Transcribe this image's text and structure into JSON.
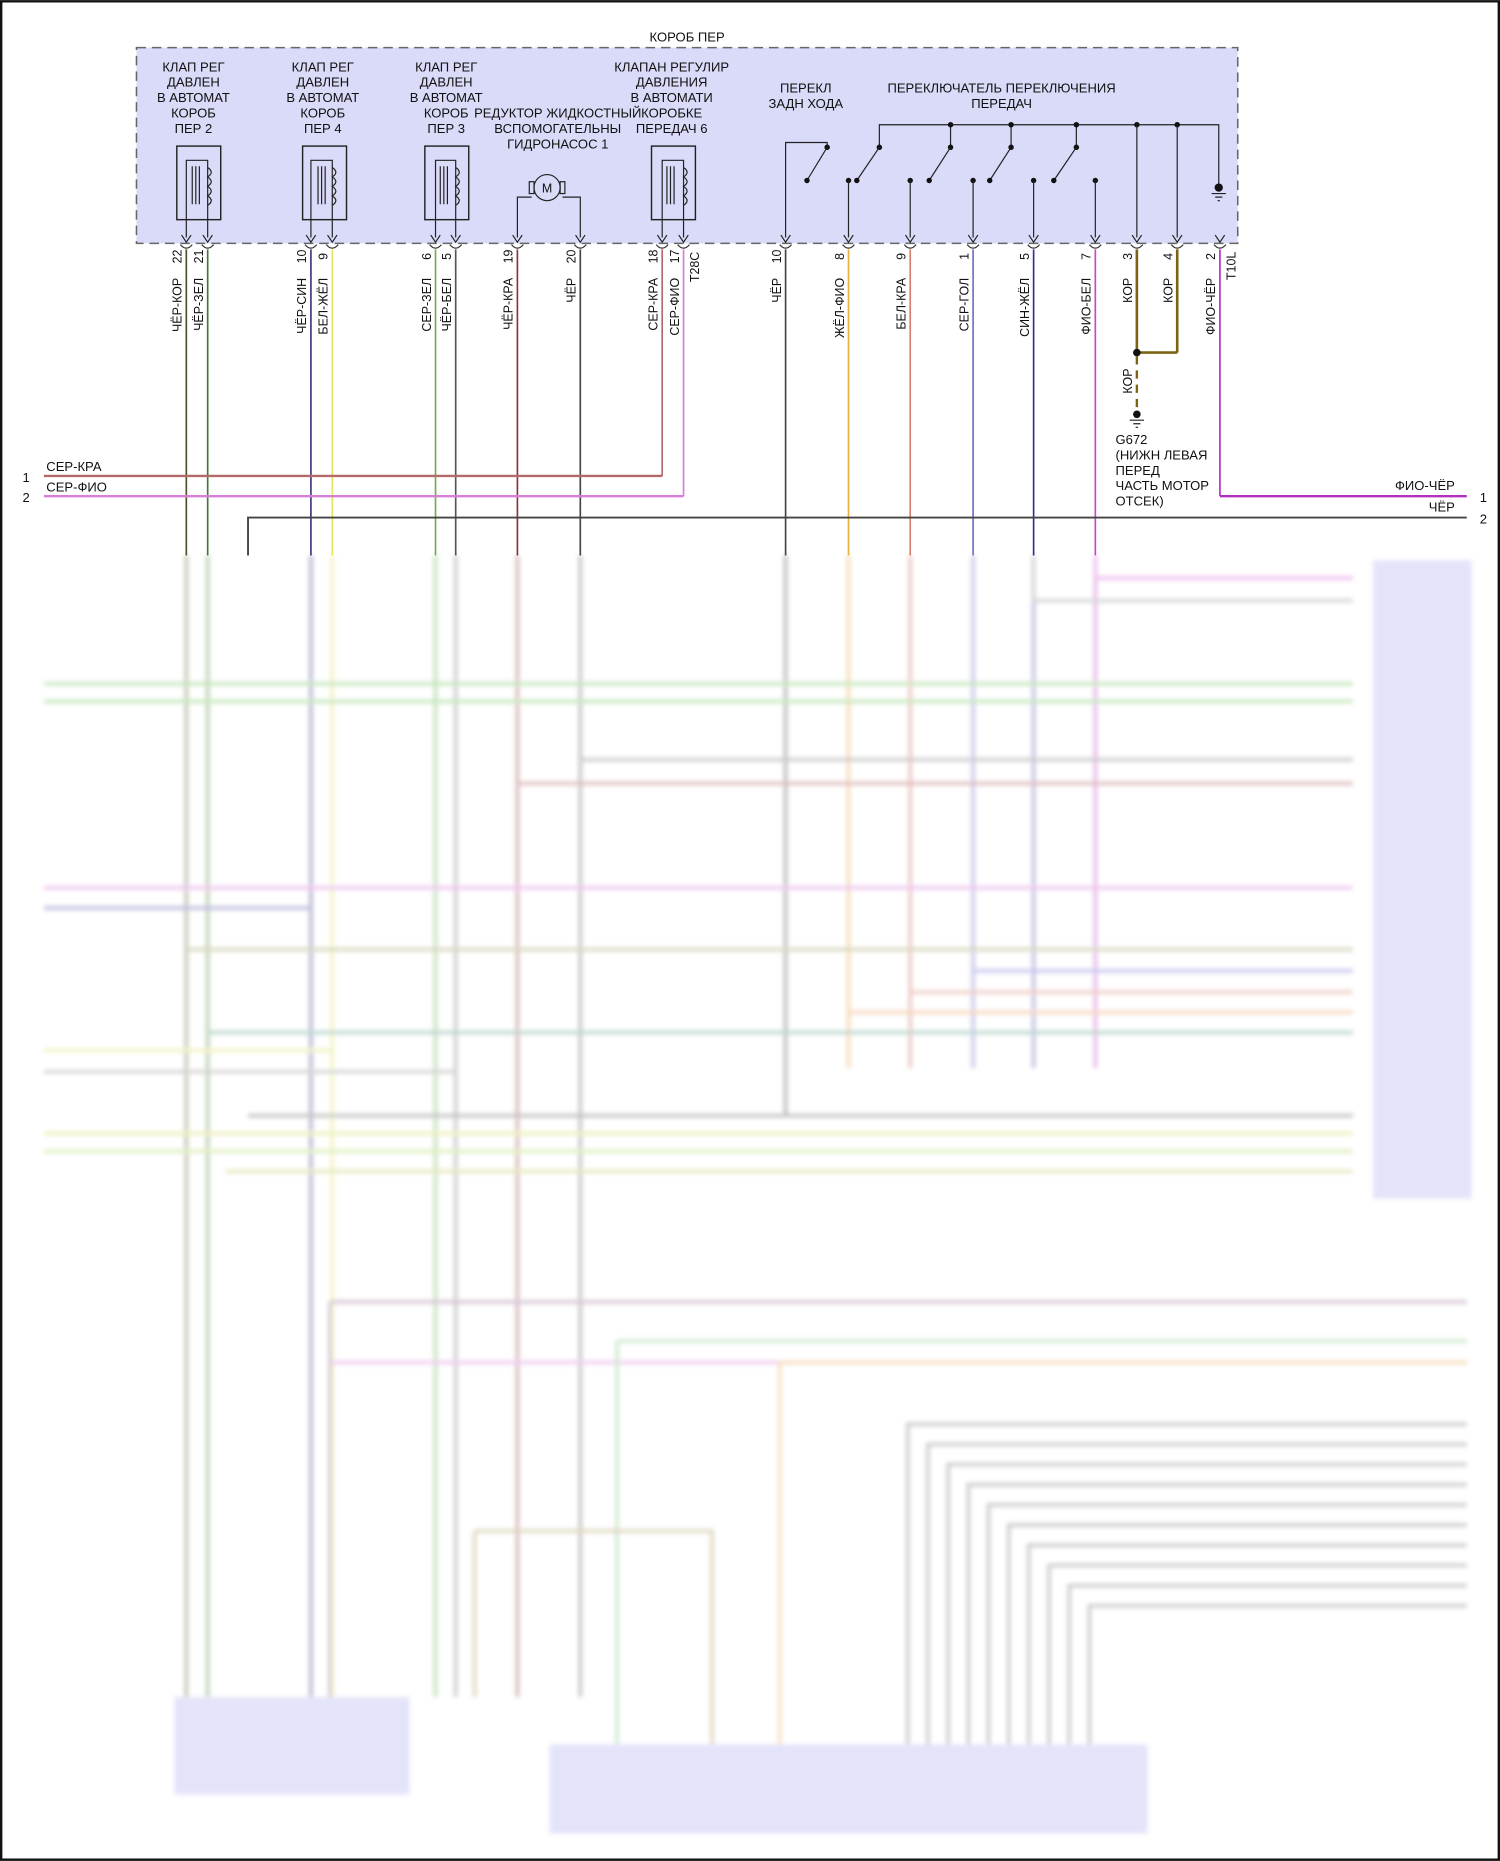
{
  "box_title": "КОРОБ ПЕР",
  "components": [
    {
      "lines": [
        "КЛАП РЕГ",
        "ДАВЛЕН",
        "В АВТОМАТ",
        "КОРОБ",
        "ПЕР 2"
      ]
    },
    {
      "lines": [
        "КЛАП РЕГ",
        "ДАВЛЕН",
        "В АВТОМАТ",
        "КОРОБ",
        "ПЕР 4"
      ]
    },
    {
      "lines": [
        "КЛАП РЕГ",
        "ДАВЛЕН",
        "В АВТОМАТ",
        "КОРОБ",
        "ПЕР 3"
      ]
    },
    {
      "lines": [
        "РЕДУКТОР ЖИДКОСТНЫЙ",
        "ВСПОМОГАТЕЛЬНЫ",
        "ГИДРОНАСОС 1"
      ],
      "symbol": "M"
    },
    {
      "lines": [
        "КЛАПАН РЕГУЛИР",
        "ДАВЛЕНИЯ",
        "В АВТОМАТИ",
        "КОРОБКЕ",
        "ПЕРЕДАЧ 6"
      ]
    },
    {
      "lines": [
        "ПЕРЕКЛ",
        "ЗАДН ХОДА"
      ]
    },
    {
      "lines": [
        "ПЕРЕКЛЮЧАТЕЛЬ ПЕРЕКЛЮЧЕНИЯ",
        "ПЕРЕДАЧ"
      ]
    }
  ],
  "connectors": {
    "left": "T28C",
    "right": "T10L"
  },
  "pins": [
    {
      "num": "22",
      "wire": "ЧЁР-КОР",
      "color": "#4f4f2a"
    },
    {
      "num": "21",
      "wire": "ЧЁР-ЗЕЛ",
      "color": "#3d7a2e"
    },
    {
      "num": "10",
      "wire": "ЧЁР-СИН",
      "color": "#3a3a7a"
    },
    {
      "num": "9",
      "wire": "БЕЛ-ЖЁЛ",
      "color": "#e6e65a"
    },
    {
      "num": "6",
      "wire": "СЕР-ЗЕЛ",
      "color": "#6fb04a"
    },
    {
      "num": "5",
      "wire": "ЧЁР-БЕЛ",
      "color": "#555555"
    },
    {
      "num": "19",
      "wire": "ЧЁР-КРА",
      "color": "#8a3535"
    },
    {
      "num": "20",
      "wire": "ЧЁР",
      "color": "#444444"
    },
    {
      "num": "18",
      "wire": "СЕР-КРА",
      "color": "#b56a6a"
    },
    {
      "num": "17",
      "wire": "СЕР-ФИО",
      "color": "#d77fd7"
    },
    {
      "num": "10",
      "wire": "ЧЁР",
      "color": "#444444"
    },
    {
      "num": "8",
      "wire": "ЖЁЛ-ФИО",
      "color": "#e8b040"
    },
    {
      "num": "9",
      "wire": "БЕЛ-КРА",
      "color": "#d6806e"
    },
    {
      "num": "1",
      "wire": "СЕР-ГОЛ",
      "color": "#7070c8"
    },
    {
      "num": "5",
      "wire": "СИН-ЖЁЛ",
      "color": "#2f2f9a"
    },
    {
      "num": "7",
      "wire": "ФИО-БЕЛ",
      "color": "#cc44cc"
    },
    {
      "num": "3",
      "wire": "КОР",
      "color": "#7a6414"
    },
    {
      "num": "4",
      "wire": "КОР",
      "color": "#7a6414"
    },
    {
      "num": "2",
      "wire": "ФИО-ЧЁР",
      "color": "#b030c0"
    }
  ],
  "left_lines": [
    {
      "num": "1",
      "wire": "СЕР-КРА"
    },
    {
      "num": "2",
      "wire": "СЕР-ФИО"
    }
  ],
  "right_lines": [
    {
      "num": "1",
      "wire": "ФИО-ЧЁР"
    },
    {
      "num": "2",
      "wire": "ЧЁР"
    }
  ],
  "ground": {
    "wire": "КОР",
    "lines": [
      "G672",
      "(НИЖН ЛЕВАЯ",
      "ПЕРЕД",
      "ЧАСТЬ МОТОР",
      "ОТСЕК)"
    ]
  },
  "colors": {
    "box_fill": "#dadaf9",
    "box_border": "#666666"
  }
}
